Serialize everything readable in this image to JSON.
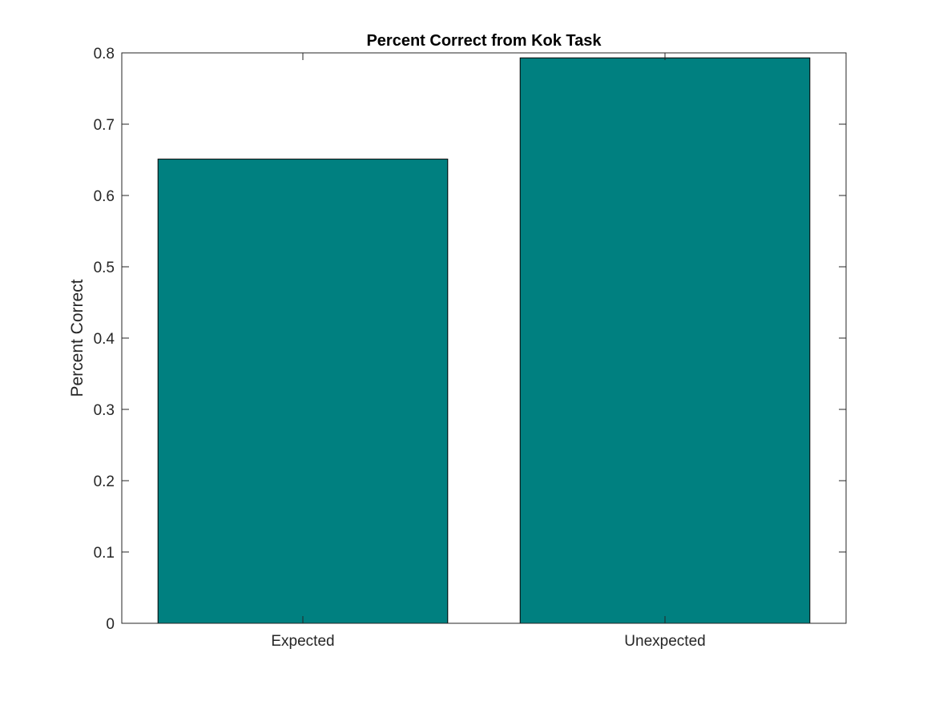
{
  "chart_data": {
    "type": "bar",
    "title": "Percent Correct from Kok Task",
    "xlabel": "",
    "ylabel": "Percent Correct",
    "categories": [
      "Expected",
      "Unexpected"
    ],
    "values": [
      0.651,
      0.793
    ],
    "ylim": [
      0,
      0.8
    ],
    "xlim": [
      0.5,
      2.5
    ],
    "yticks": [
      "0",
      "0.1",
      "0.2",
      "0.3",
      "0.4",
      "0.5",
      "0.6",
      "0.7",
      "0.8"
    ],
    "bar_width": 0.8,
    "bar_color": "#008080",
    "grid": false,
    "box": true
  }
}
